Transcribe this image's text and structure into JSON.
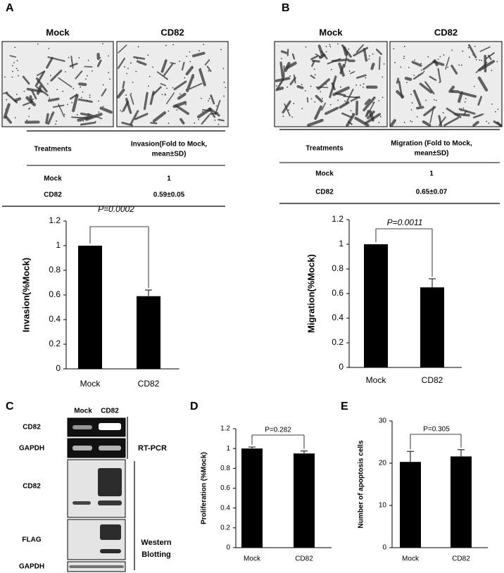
{
  "panel_labels": [
    "A",
    "B",
    "C",
    "D",
    "E"
  ],
  "images": [
    [
      "Mock",
      "CD82"
    ],
    [
      "Mock",
      "CD82"
    ]
  ],
  "tables": [
    {
      "header": [
        "Treatments",
        [
          "Invasion(Fold to Mock,",
          "mean±SD)"
        ]
      ],
      "rows": [
        [
          "Mock",
          "1"
        ],
        [
          "CD82",
          "0.59±0.05"
        ]
      ]
    },
    {
      "header": [
        "Treatments",
        [
          "Migration (Fold to Mock,",
          "mean±SD)"
        ]
      ],
      "rows": [
        [
          "Mock",
          "1"
        ],
        [
          "CD82",
          "0.65±0.07"
        ]
      ]
    }
  ],
  "blot": {
    "columns": [
      "Mock",
      "CD82"
    ],
    "rows": [
      "CD82",
      "GAPDH",
      "CD82",
      "FLAG",
      "GAPDH"
    ],
    "groups": [
      [
        "RT-PCR"
      ],
      [
        "Western",
        "Blotting"
      ]
    ]
  },
  "chart_data": [
    {
      "type": "bar",
      "y_label": "Invasion(%Mock)",
      "categories": [
        "Mock",
        "CD82"
      ],
      "values": [
        1,
        0.59
      ],
      "errors": [
        null,
        0.05
      ],
      "color": "#000000",
      "ylim": [
        0,
        1.2
      ],
      "yticks": [
        0,
        0.2,
        0.4,
        0.6,
        0.8,
        1,
        1.2
      ],
      "annotation": "P=0.0002"
    },
    {
      "type": "bar",
      "y_label": "Migration(%Mock)",
      "categories": [
        "Mock",
        "CD82"
      ],
      "values": [
        1,
        0.65
      ],
      "errors": [
        null,
        0.07
      ],
      "color": "#000000",
      "ylim": [
        0,
        1.2
      ],
      "yticks": [
        0,
        0.2,
        0.4,
        0.6,
        0.8,
        1,
        1.2
      ],
      "annotation": "P=0.0011"
    },
    {
      "type": "bar",
      "y_label": "Proliferation (%Mock)",
      "categories": [
        "Mock",
        "CD82"
      ],
      "values": [
        1,
        0.95
      ],
      "errors": [
        0.015,
        0.025
      ],
      "color": "#000000",
      "ylim": [
        0,
        1.2
      ],
      "yticks": [
        0,
        0.2,
        0.4,
        0.6,
        0.8,
        1,
        1.2
      ],
      "annotation": "P=0.282"
    },
    {
      "type": "bar",
      "y_label": "Number of apoptosis cells",
      "categories": [
        "Mock",
        "CD82"
      ],
      "values": [
        20.3,
        21.6
      ],
      "errors": [
        2.5,
        1.6
      ],
      "color": "#000000",
      "ylim": [
        0,
        30
      ],
      "yticks": [
        0,
        10,
        20,
        30
      ],
      "annotation": "P=0.305"
    }
  ]
}
